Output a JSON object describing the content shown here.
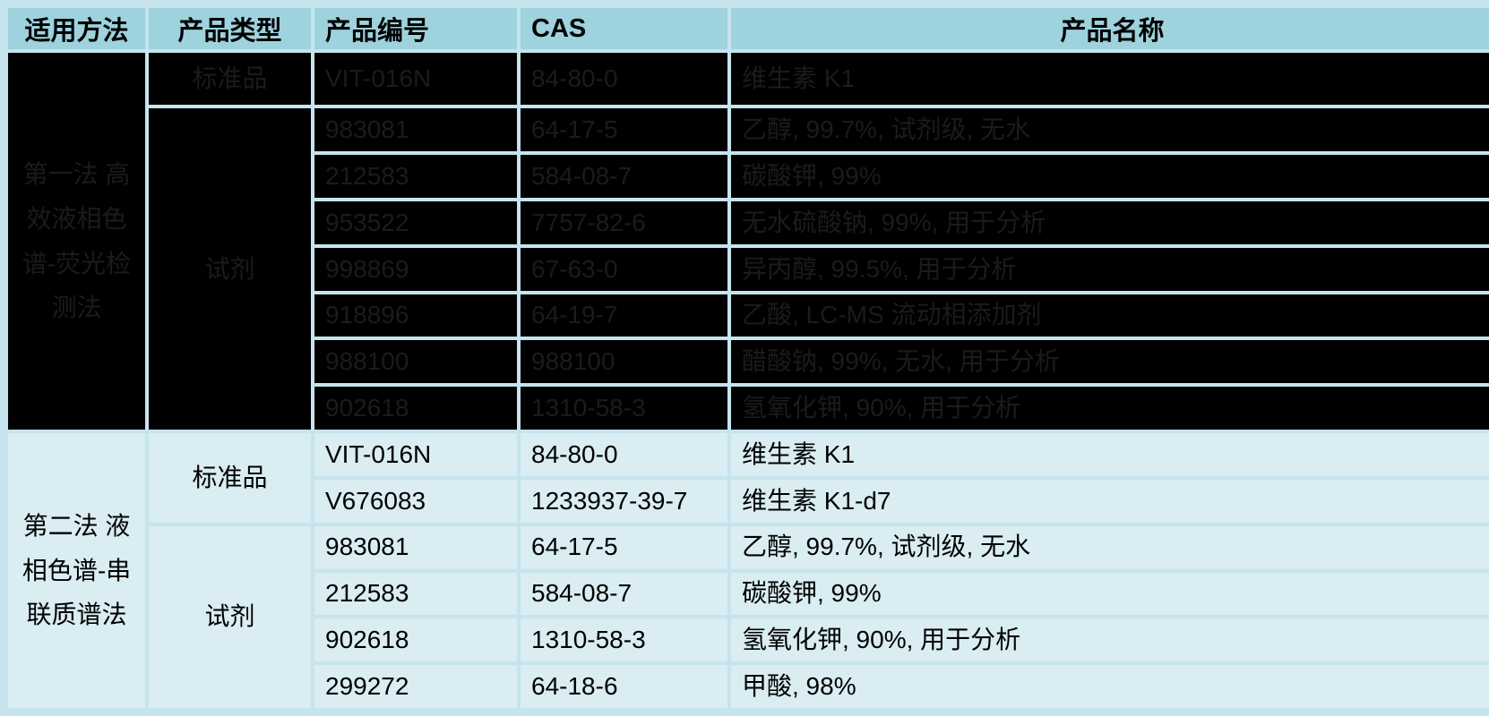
{
  "colors": {
    "grid": "#c6e4ee",
    "header_bg": "#9ed2dd",
    "row_bg": "#d9edf2",
    "obscured_bg": "#000000",
    "obscured_text": "#1b1b1b",
    "text": "#000000"
  },
  "table": {
    "headers": [
      "适用方法",
      "产品类型",
      "产品编号",
      "CAS",
      "产品名称"
    ],
    "sections": [
      {
        "method": "第一法 高效液相色谱-荧光检测法",
        "obscured": true,
        "groups": [
          {
            "type": "标准品",
            "rows": [
              {
                "sku": "VIT-016N",
                "cas": "84-80-0",
                "name": "维生素 K1"
              }
            ]
          },
          {
            "type": "试剂",
            "rows": [
              {
                "sku": "983081",
                "cas": "64-17-5",
                "name": "乙醇, 99.7%, 试剂级, 无水"
              },
              {
                "sku": "212583",
                "cas": "584-08-7",
                "name": "碳酸钾, 99%"
              },
              {
                "sku": "953522",
                "cas": "7757-82-6",
                "name": "无水硫酸钠, 99%, 用于分析"
              },
              {
                "sku": "998869",
                "cas": "67-63-0",
                "name": "异丙醇, 99.5%, 用于分析"
              },
              {
                "sku": "918896",
                "cas": "64-19-7",
                "name": "乙酸, LC-MS 流动相添加剂"
              },
              {
                "sku": "988100",
                "cas": "988100",
                "name": "醋酸钠, 99%, 无水, 用于分析"
              },
              {
                "sku": "902618",
                "cas": "1310-58-3",
                "name": "氢氧化钾, 90%, 用于分析"
              }
            ]
          }
        ]
      },
      {
        "method": "第二法 液相色谱-串联质谱法",
        "obscured": false,
        "groups": [
          {
            "type": "标准品",
            "rows": [
              {
                "sku": "VIT-016N",
                "cas": "84-80-0",
                "name": "维生素 K1"
              },
              {
                "sku": "V676083",
                "cas": "1233937-39-7",
                "name": "维生素 K1-d7"
              }
            ]
          },
          {
            "type": "试剂",
            "rows": [
              {
                "sku": "983081",
                "cas": "64-17-5",
                "name": "乙醇, 99.7%, 试剂级, 无水"
              },
              {
                "sku": "212583",
                "cas": "584-08-7",
                "name": "碳酸钾, 99%"
              },
              {
                "sku": "902618",
                "cas": "1310-58-3",
                "name": "氢氧化钾, 90%, 用于分析"
              },
              {
                "sku": "299272",
                "cas": "64-18-6",
                "name": "甲酸, 98%"
              }
            ]
          }
        ]
      }
    ]
  }
}
